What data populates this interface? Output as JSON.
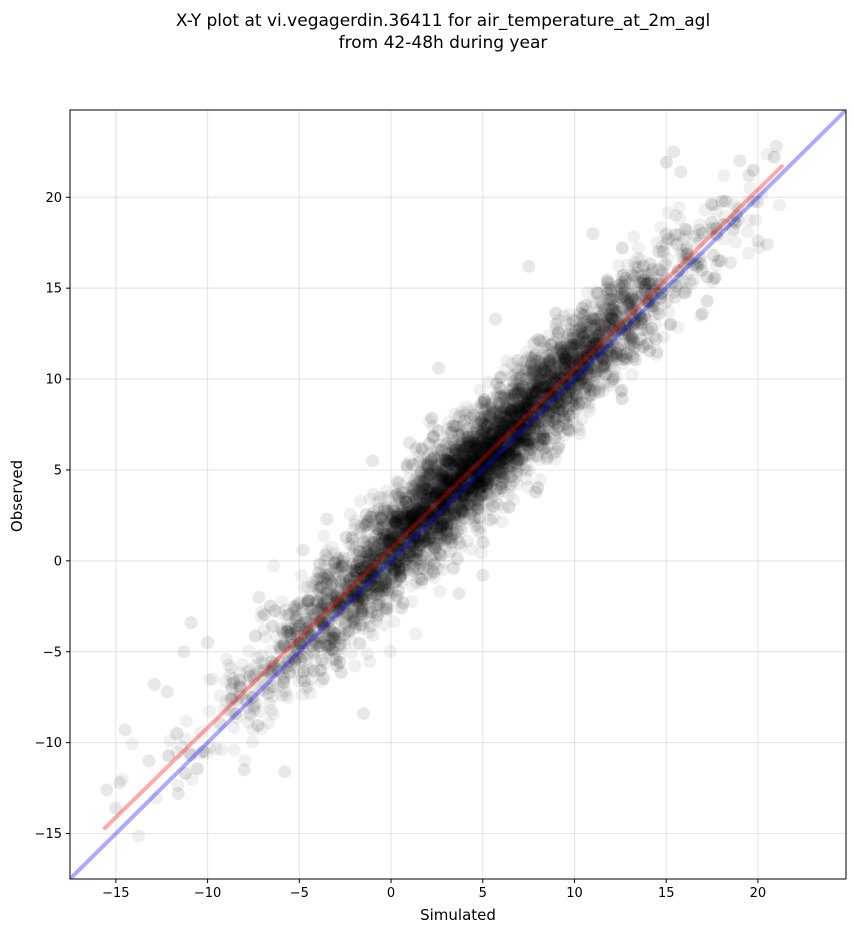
{
  "chart_data": {
    "type": "scatter",
    "title_lines": [
      "X-Y plot at vi.vegagerdin.36411 for air_temperature_at_2m_agl",
      "from 42-48h during year"
    ],
    "xlabel": "Simulated",
    "ylabel": "Observed",
    "xlim": [
      -17.5,
      24.8
    ],
    "ylim": [
      -17.5,
      24.8
    ],
    "xticks": [
      -15,
      -10,
      -5,
      0,
      5,
      10,
      15,
      20
    ],
    "yticks": [
      -15,
      -10,
      -5,
      0,
      5,
      10,
      15,
      20
    ],
    "tick_labels_x": [
      "−15",
      "−10",
      "−5",
      "0",
      "5",
      "10",
      "15",
      "20"
    ],
    "tick_labels_y": [
      "−15",
      "−10",
      "−5",
      "0",
      "5",
      "10",
      "15",
      "20"
    ],
    "grid": true,
    "point_color": "#000000",
    "point_alpha": 0.06,
    "point_count": 6000,
    "distribution": {
      "x_center": 4.5,
      "x_spread": 5.5,
      "residual_sd": 1.5,
      "x_min": -15.8,
      "x_max": 21.5
    },
    "outlier_points": [
      {
        "x": -15.5,
        "y": -12.6
      },
      {
        "x": -15.0,
        "y": -13.6
      },
      {
        "x": -14.8,
        "y": -12.2
      },
      {
        "x": -14.5,
        "y": -9.3
      },
      {
        "x": -13.2,
        "y": -11.0
      },
      {
        "x": -12.9,
        "y": -6.8
      },
      {
        "x": -12.2,
        "y": -7.2
      },
      {
        "x": -11.6,
        "y": -12.8
      },
      {
        "x": -11.3,
        "y": -5.0
      },
      {
        "x": -10.9,
        "y": -3.4
      },
      {
        "x": -10.0,
        "y": -4.5
      },
      {
        "x": -8.0,
        "y": -11.5
      },
      {
        "x": -7.2,
        "y": -2.0
      },
      {
        "x": -5.8,
        "y": -11.6
      },
      {
        "x": -4.8,
        "y": 0.6
      },
      {
        "x": -3.5,
        "y": 2.3
      },
      {
        "x": -1.5,
        "y": -8.4
      },
      {
        "x": -1.0,
        "y": 5.5
      },
      {
        "x": 1.0,
        "y": 6.5
      },
      {
        "x": 2.6,
        "y": 10.6
      },
      {
        "x": 3.7,
        "y": -1.8
      },
      {
        "x": 5.0,
        "y": -0.8
      },
      {
        "x": 5.7,
        "y": 13.3
      },
      {
        "x": 7.5,
        "y": 16.2
      },
      {
        "x": 9.0,
        "y": 6.0
      },
      {
        "x": 11.0,
        "y": 18.0
      },
      {
        "x": 14.5,
        "y": 11.5
      },
      {
        "x": 15.4,
        "y": 22.5
      },
      {
        "x": 15.8,
        "y": 21.4
      },
      {
        "x": 15.5,
        "y": 14.5
      },
      {
        "x": 16.8,
        "y": 18.2
      },
      {
        "x": 18.0,
        "y": 16.5
      },
      {
        "x": 18.5,
        "y": 16.4
      },
      {
        "x": 19.0,
        "y": 22.0
      },
      {
        "x": 19.5,
        "y": 21.2
      },
      {
        "x": 20.0,
        "y": 17.6
      },
      {
        "x": 20.5,
        "y": 17.4
      },
      {
        "x": 21.0,
        "y": 22.8
      }
    ],
    "lines": [
      {
        "role": "one-to-one",
        "color": "#0000ff",
        "alpha": 0.33,
        "x": [
          -17.5,
          24.8
        ],
        "y": [
          -17.5,
          24.8
        ]
      },
      {
        "role": "fit",
        "color": "#ff0000",
        "alpha": 0.33,
        "x": [
          -15.6,
          21.3
        ],
        "y": [
          -14.7,
          21.7
        ]
      }
    ]
  }
}
